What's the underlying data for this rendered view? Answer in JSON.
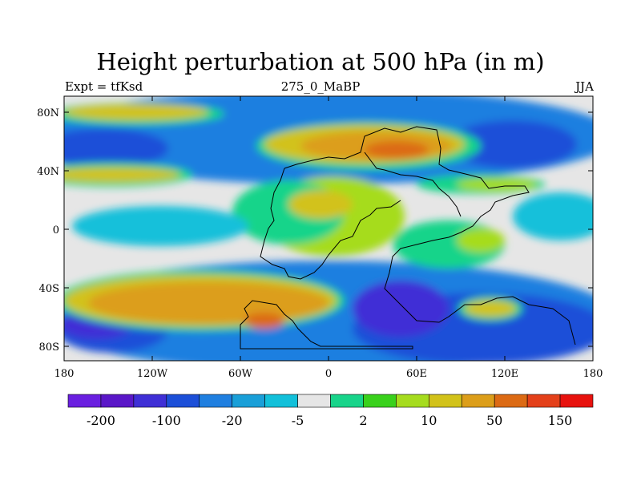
{
  "title": "Height perturbation at 500 hPa (in m)",
  "subtitle_left": "Expt = tfKsd",
  "subtitle_center": "275_0_MaBP",
  "subtitle_right": "JJA",
  "x_ticks": [
    "180",
    "120W",
    "60W",
    "0",
    "60E",
    "120E",
    "180"
  ],
  "y_ticks": [
    "80N",
    "40N",
    "0",
    "40S",
    "80S"
  ],
  "colorbar": {
    "colors": [
      "#6a1fe0",
      "#5a17c8",
      "#3f2fd6",
      "#1c4fd8",
      "#1f7fe0",
      "#199fd8",
      "#12c0da",
      "#e6e6e6",
      "#18d48a",
      "#39d11c",
      "#a6dc1e",
      "#d2c21a",
      "#dc9e1a",
      "#dc6a14",
      "#e4401a",
      "#e8120e"
    ],
    "labels": [
      "-200",
      "-100",
      "-20",
      "-5",
      "2",
      "10",
      "50",
      "150"
    ]
  },
  "field_colors": {
    "background": "#e6e6e6",
    "strong_low": "#3f2fd6",
    "low": "#1c4fd8",
    "mid_low": "#1f7fe0",
    "weak_low": "#12c0da",
    "weak_high": "#18d48a",
    "mid_high": "#a6dc1e",
    "high": "#d2c21a",
    "strong_high": "#dc9e1a",
    "peak": "#dc6a14"
  }
}
